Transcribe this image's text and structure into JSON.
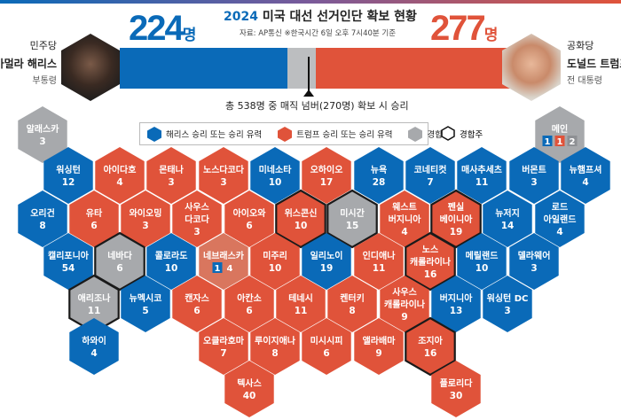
{
  "header": {
    "title_year": "2024",
    "title": "미국 대선 선거인단 확보 현황",
    "source": "자료: AP통신  ※한국시간 6일 오후 7시40분 기준",
    "magic_number_note": "총 538명 중 매직 넘버(270명) 확보 시 승리"
  },
  "tally": {
    "total": 538,
    "magic_number": 270,
    "harris": {
      "party": "민주당",
      "name": "카멀라 해리스",
      "title": "부통령",
      "votes": "224",
      "unit": "명",
      "color": "#0a6ab8"
    },
    "trump": {
      "party": "공화당",
      "name": "도널드 트럼프",
      "title": "전 대통령",
      "votes": "277",
      "unit": "명",
      "color": "#e0533a"
    },
    "undecided_color": "#a7a9ac"
  },
  "legend": {
    "harris": "해리스 승리 또는 승리 유력",
    "trump": "트럼프 승리 또는 승리 유력",
    "tossup": "경합",
    "swing": "경합주"
  },
  "colors": {
    "harris": "#0a6ab8",
    "trump": "#e0533a",
    "tossup": "#a7a9ac",
    "split": "#d9765e"
  },
  "states": [
    {
      "name": "알래스카",
      "ev": "3",
      "status": "tossup"
    },
    {
      "name": "메인",
      "ev": "",
      "status": "tossup",
      "split": [
        [
          "1",
          "harris"
        ],
        [
          "1",
          "trump"
        ],
        [
          "2",
          "tossup"
        ]
      ]
    },
    {
      "name": "워싱턴",
      "ev": "12",
      "status": "harris"
    },
    {
      "name": "아이다호",
      "ev": "4",
      "status": "trump"
    },
    {
      "name": "몬태나",
      "ev": "3",
      "status": "trump"
    },
    {
      "name": "노스다코다",
      "ev": "3",
      "status": "trump"
    },
    {
      "name": "미네소타",
      "ev": "10",
      "status": "harris"
    },
    {
      "name": "오하이오",
      "ev": "17",
      "status": "trump"
    },
    {
      "name": "뉴욕",
      "ev": "28",
      "status": "harris"
    },
    {
      "name": "코네티컷",
      "ev": "7",
      "status": "harris"
    },
    {
      "name": "매사추세츠",
      "ev": "11",
      "status": "harris"
    },
    {
      "name": "버몬트",
      "ev": "3",
      "status": "harris"
    },
    {
      "name": "뉴햄프셔",
      "ev": "4",
      "status": "harris"
    },
    {
      "name": "오리건",
      "ev": "8",
      "status": "harris"
    },
    {
      "name": "유타",
      "ev": "6",
      "status": "trump"
    },
    {
      "name": "와이오밍",
      "ev": "3",
      "status": "trump"
    },
    {
      "name": "사우스\n다코다",
      "ev": "3",
      "status": "trump"
    },
    {
      "name": "아이오와",
      "ev": "6",
      "status": "trump"
    },
    {
      "name": "위스콘신",
      "ev": "10",
      "status": "trump",
      "swing": true
    },
    {
      "name": "미시간",
      "ev": "15",
      "status": "tossup",
      "swing": true
    },
    {
      "name": "웨스트\n버지니아",
      "ev": "4",
      "status": "trump"
    },
    {
      "name": "펜실\n베이니아",
      "ev": "19",
      "status": "trump",
      "swing": true
    },
    {
      "name": "뉴저지",
      "ev": "14",
      "status": "harris"
    },
    {
      "name": "로드\n아일랜드",
      "ev": "4",
      "status": "harris"
    },
    {
      "name": "캘리포니아",
      "ev": "54",
      "status": "harris"
    },
    {
      "name": "네바다",
      "ev": "6",
      "status": "tossup",
      "swing": true
    },
    {
      "name": "콜로라도",
      "ev": "10",
      "status": "harris"
    },
    {
      "name": "네브래스카",
      "ev": "",
      "status": "split",
      "split": [
        [
          "1",
          "harris"
        ],
        [
          "4",
          "split"
        ]
      ]
    },
    {
      "name": "미주리",
      "ev": "10",
      "status": "trump"
    },
    {
      "name": "일리노이",
      "ev": "19",
      "status": "harris"
    },
    {
      "name": "인디애나",
      "ev": "11",
      "status": "trump"
    },
    {
      "name": "노스\n캐롤라이나",
      "ev": "16",
      "status": "trump",
      "swing": true
    },
    {
      "name": "메릴랜드",
      "ev": "10",
      "status": "harris"
    },
    {
      "name": "델라웨어",
      "ev": "3",
      "status": "harris"
    },
    {
      "name": "애리조나",
      "ev": "11",
      "status": "tossup",
      "swing": true
    },
    {
      "name": "뉴멕시코",
      "ev": "5",
      "status": "harris"
    },
    {
      "name": "캔자스",
      "ev": "6",
      "status": "trump"
    },
    {
      "name": "아칸소",
      "ev": "6",
      "status": "trump"
    },
    {
      "name": "테네시",
      "ev": "11",
      "status": "trump"
    },
    {
      "name": "켄터키",
      "ev": "8",
      "status": "trump"
    },
    {
      "name": "사우스\n캐롤라이나",
      "ev": "9",
      "status": "trump"
    },
    {
      "name": "버지니아",
      "ev": "13",
      "status": "harris"
    },
    {
      "name": "워싱턴 DC",
      "ev": "3",
      "status": "harris"
    },
    {
      "name": "하와이",
      "ev": "4",
      "status": "harris"
    },
    {
      "name": "오클라호마",
      "ev": "7",
      "status": "trump"
    },
    {
      "name": "루이지애나",
      "ev": "8",
      "status": "trump"
    },
    {
      "name": "미시시피",
      "ev": "6",
      "status": "trump"
    },
    {
      "name": "앨라배마",
      "ev": "9",
      "status": "trump"
    },
    {
      "name": "조지아",
      "ev": "16",
      "status": "trump",
      "swing": true
    },
    {
      "name": "텍사스",
      "ev": "40",
      "status": "trump"
    },
    {
      "name": "플로리다",
      "ev": "30",
      "status": "trump"
    }
  ]
}
